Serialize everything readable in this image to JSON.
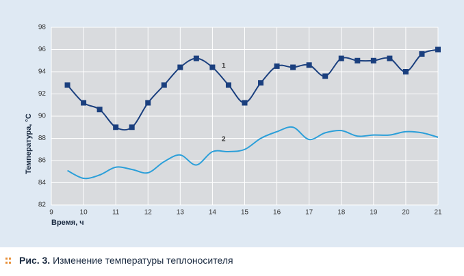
{
  "chart_data": {
    "type": "line",
    "x_label": "Время, ч",
    "y_label": "Температура, °С",
    "x": [
      9.5,
      10,
      10.5,
      11,
      11.5,
      12,
      12.5,
      13,
      13.5,
      14,
      14.5,
      15,
      15.5,
      16,
      16.5,
      17,
      17.5,
      18,
      18.5,
      19,
      19.5,
      20,
      20.5,
      21
    ],
    "series": [
      {
        "name": "1",
        "color": "#1a3f7e",
        "marker": "square",
        "values": [
          92.8,
          91.2,
          90.6,
          89.0,
          89.0,
          91.2,
          92.8,
          94.4,
          95.2,
          94.4,
          92.8,
          91.2,
          93.0,
          94.5,
          94.4,
          94.6,
          93.6,
          95.2,
          95.0,
          95.0,
          95.2,
          94.0,
          95.6,
          96.0
        ]
      },
      {
        "name": "2",
        "color": "#2b9fd9",
        "marker": "none",
        "values": [
          85.1,
          84.4,
          84.7,
          85.4,
          85.2,
          84.9,
          85.9,
          86.5,
          85.6,
          86.8,
          86.8,
          87.0,
          88.0,
          88.6,
          89.0,
          87.9,
          88.5,
          88.7,
          88.2,
          88.3,
          88.3,
          88.6,
          88.5,
          88.1
        ]
      }
    ],
    "xlim": [
      9,
      21
    ],
    "xticks": [
      9,
      10,
      11,
      12,
      13,
      14,
      15,
      16,
      17,
      18,
      19,
      20,
      21
    ],
    "ylim": [
      82,
      98
    ],
    "yticks": [
      82,
      84,
      86,
      88,
      90,
      92,
      94,
      96,
      98
    ],
    "grid": true
  },
  "caption": {
    "label": "Рис. 3.",
    "text": "Изменение температуры теплоносителя"
  }
}
